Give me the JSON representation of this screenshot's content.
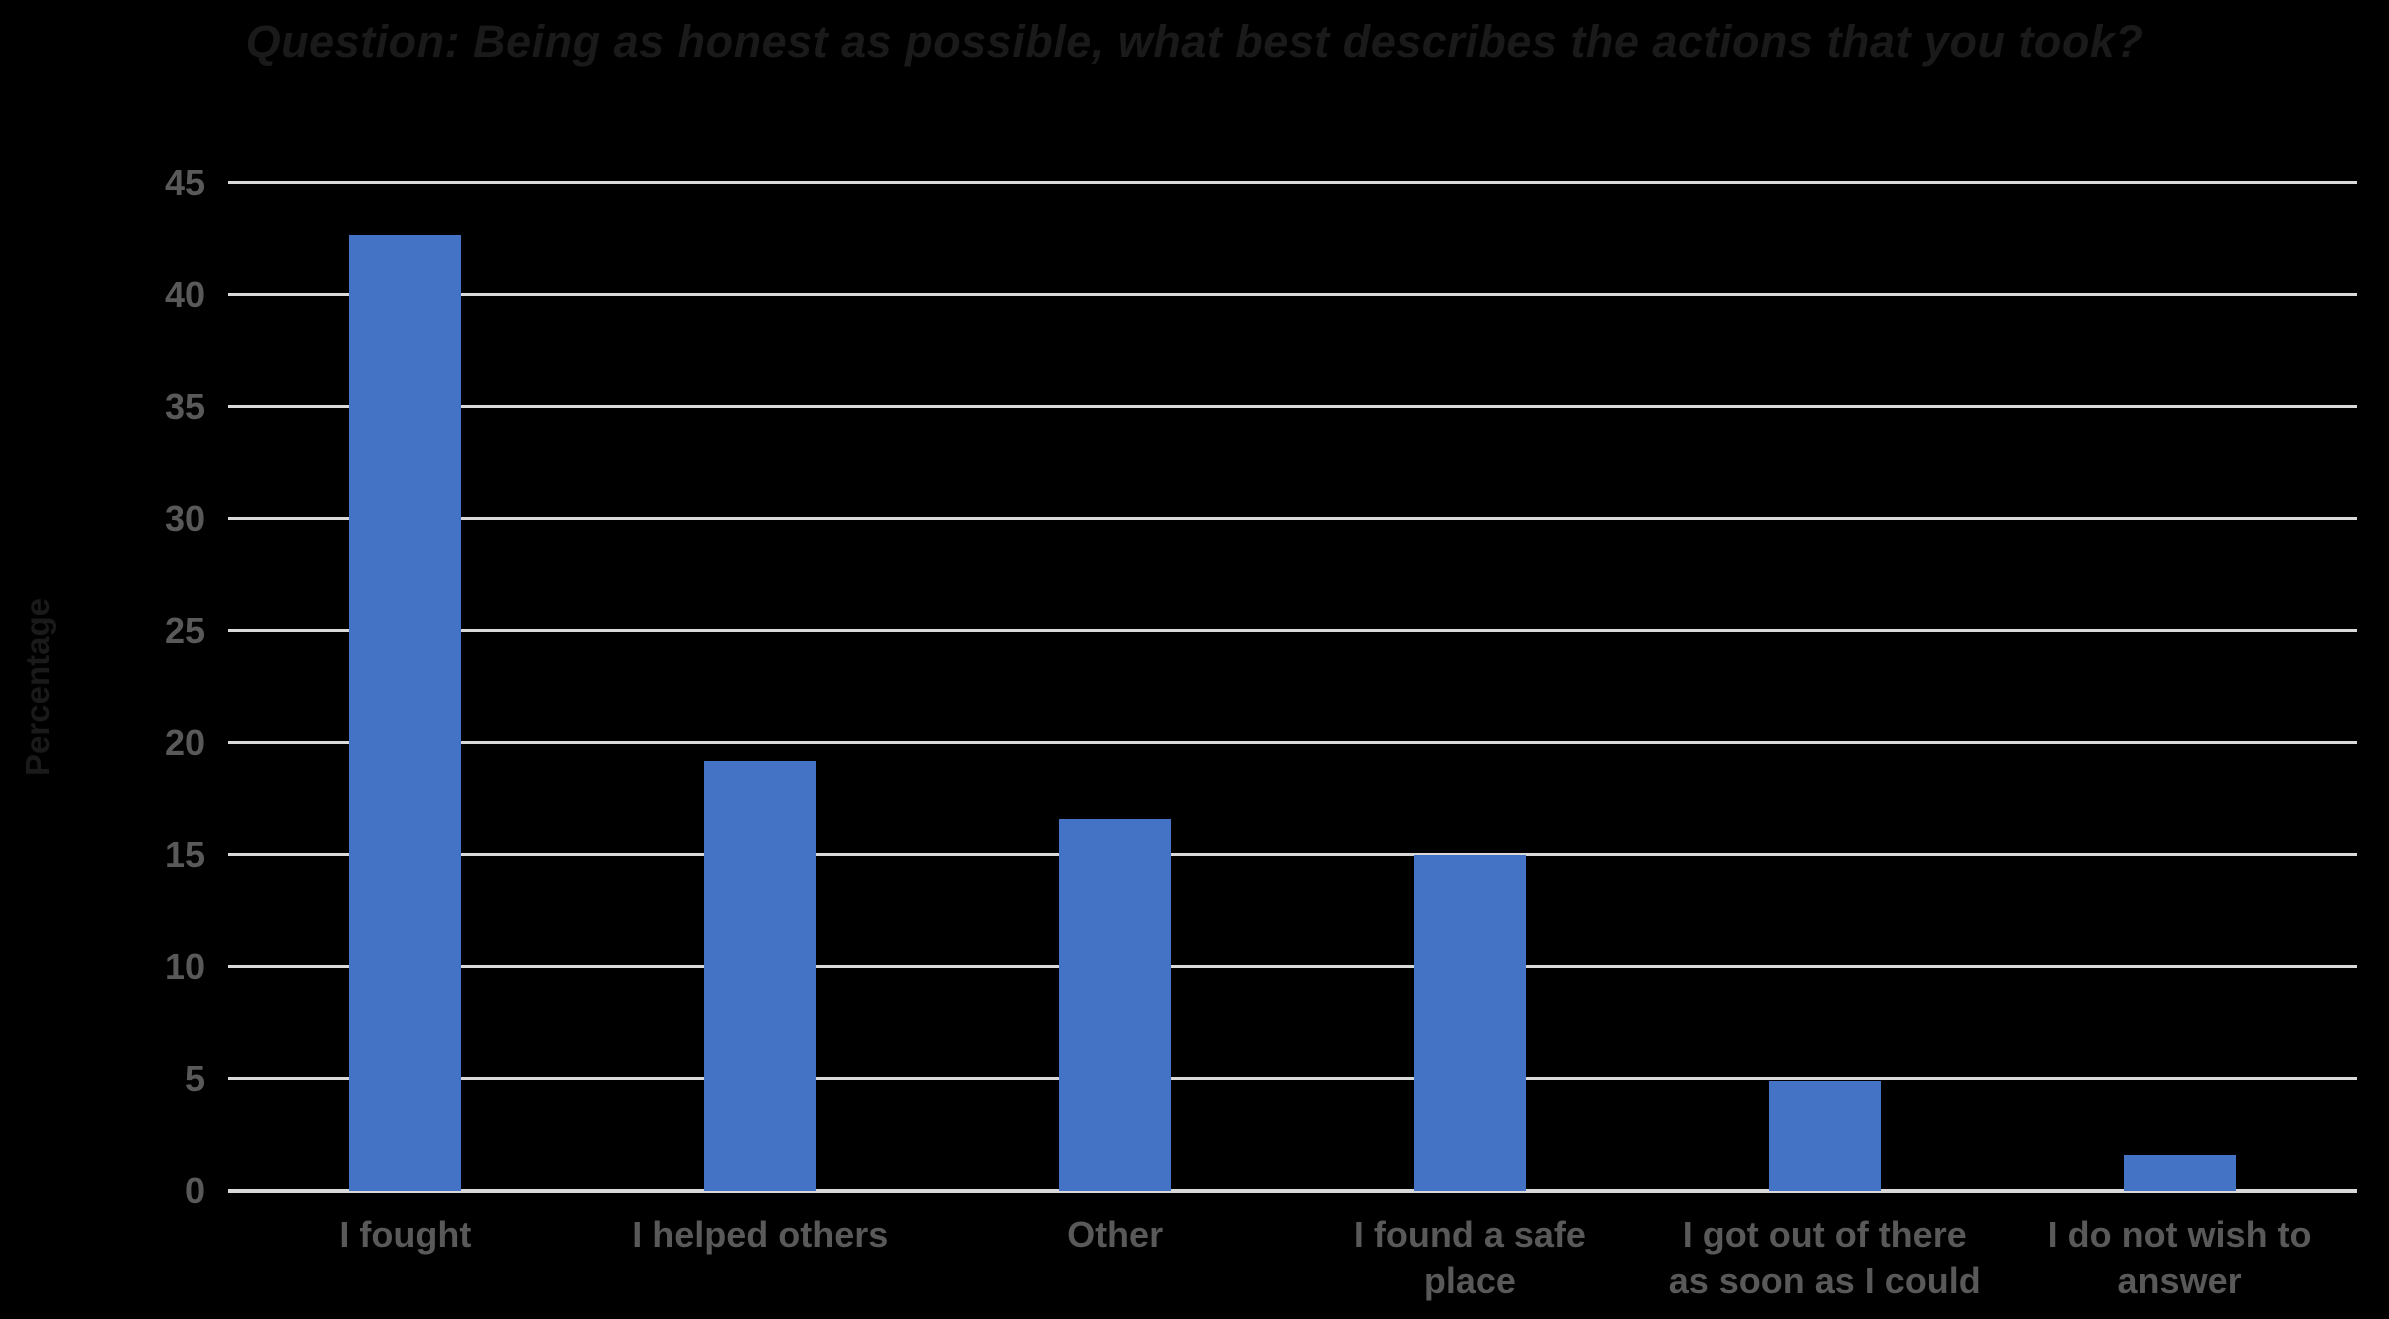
{
  "chart_data": {
    "type": "bar",
    "title": "Question: Being as honest as possible, what best describes the actions that you took?",
    "xlabel": "",
    "ylabel": "Percentage",
    "categories": [
      "I fought",
      "I helped others",
      "Other",
      "I found a safe\nplace",
      "I got out of there\nas soon as I could",
      "I do not wish to\nanswer"
    ],
    "values": [
      42.7,
      19.2,
      16.6,
      15.0,
      4.9,
      1.6
    ],
    "ylim": [
      0,
      45
    ],
    "ytick_step": 5,
    "ytick_labels": [
      "0",
      "5",
      "10",
      "15",
      "20",
      "25",
      "30",
      "35",
      "40",
      "45"
    ],
    "grid": "horizontal",
    "legend": "none",
    "colors": {
      "background": "#000000",
      "bar": "#4472C4",
      "gridline": "#D9D9D9",
      "axis_line": "#D9D9D9",
      "tick_label": "#595959",
      "category_label": "#595959",
      "title": "#1A1A1A",
      "y_axis_title": "#1A1A1A"
    }
  }
}
